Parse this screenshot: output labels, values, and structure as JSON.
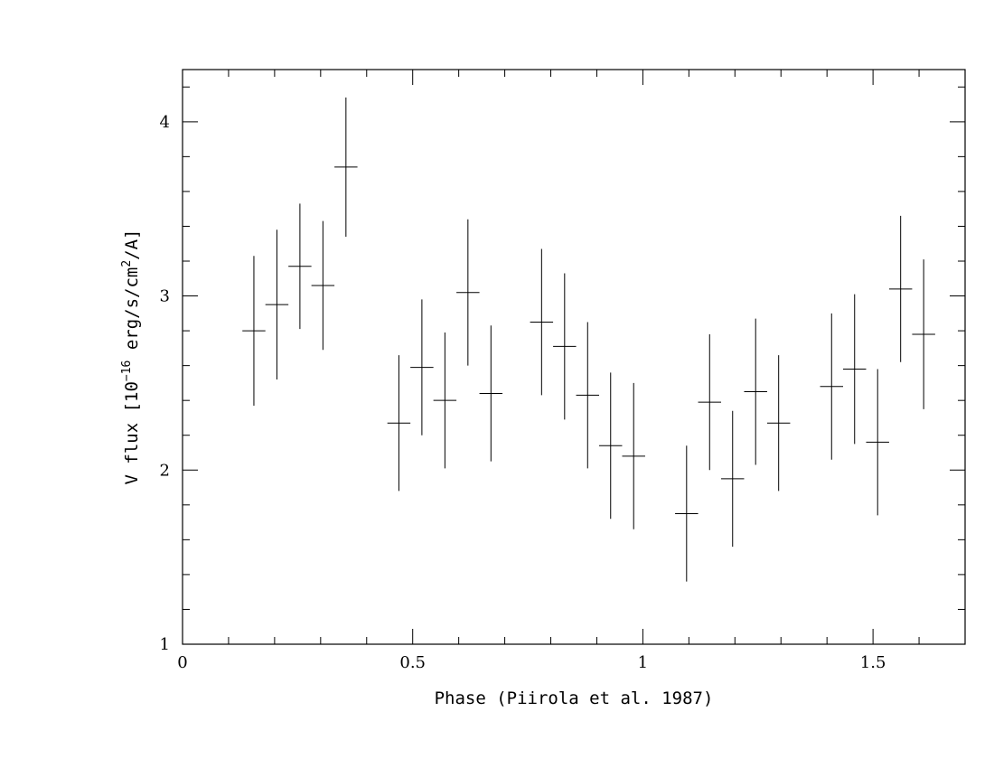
{
  "chart_data": {
    "type": "scatter",
    "title": "",
    "xlabel": "Phase (Piirola et al. 1987)",
    "ylabel": {
      "prefix": "V flux [10",
      "exp1": "−16",
      "mid": " erg/s/cm",
      "exp2": "2",
      "suffix": "/A]"
    },
    "xlim": [
      0,
      1.7
    ],
    "ylim": [
      1,
      4.3
    ],
    "x_major_ticks": [
      0,
      0.5,
      1,
      1.5
    ],
    "x_tick_labels": [
      "0",
      "0.5",
      "1",
      "1.5"
    ],
    "x_minor_step": 0.1,
    "y_major_ticks": [
      1,
      2,
      3,
      4
    ],
    "y_tick_labels": [
      "1",
      "2",
      "3",
      "4"
    ],
    "y_minor_step": 0.2,
    "grid": false,
    "series": [
      {
        "x": [
          0.155,
          0.205,
          0.255,
          0.305,
          0.355,
          0.47,
          0.52,
          0.57,
          0.62,
          0.67,
          0.78,
          0.83,
          0.88,
          0.93,
          0.98,
          1.095,
          1.145,
          1.195,
          1.245,
          1.295,
          1.41,
          1.46,
          1.51,
          1.56,
          1.61
        ],
        "y": [
          2.8,
          2.95,
          3.17,
          3.06,
          3.74,
          2.27,
          2.59,
          2.4,
          3.02,
          2.44,
          2.85,
          2.71,
          2.43,
          2.14,
          2.08,
          1.75,
          2.39,
          1.95,
          2.45,
          2.27,
          2.48,
          2.58,
          2.16,
          3.04,
          2.78
        ],
        "x_err": [
          0.025,
          0.025,
          0.025,
          0.025,
          0.025,
          0.025,
          0.025,
          0.025,
          0.025,
          0.025,
          0.025,
          0.025,
          0.025,
          0.025,
          0.025,
          0.025,
          0.025,
          0.025,
          0.025,
          0.025,
          0.025,
          0.025,
          0.025,
          0.025,
          0.025
        ],
        "y_err": [
          0.43,
          0.43,
          0.36,
          0.37,
          0.4,
          0.39,
          0.39,
          0.39,
          0.42,
          0.39,
          0.42,
          0.42,
          0.42,
          0.42,
          0.42,
          0.39,
          0.39,
          0.39,
          0.42,
          0.39,
          0.42,
          0.43,
          0.42,
          0.42,
          0.43
        ]
      }
    ]
  }
}
